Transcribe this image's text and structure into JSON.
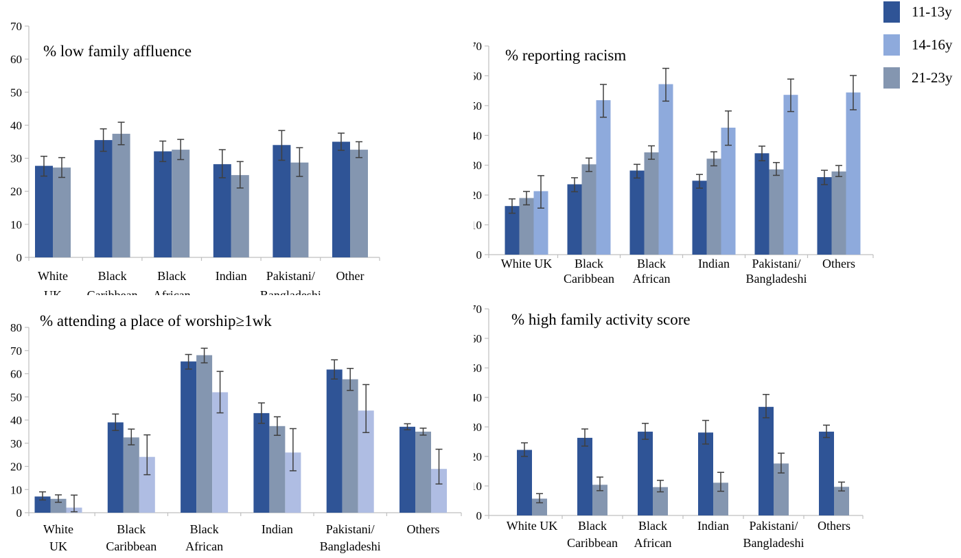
{
  "figure": {
    "background": "#ffffff"
  },
  "legend": {
    "position": "top-right",
    "items": [
      {
        "label": "11-13y",
        "color": "#2F5496"
      },
      {
        "label": "14-16y",
        "color": "#8EAADC"
      },
      {
        "label": "21-23y",
        "color": "#8496B0"
      }
    ]
  },
  "colors": {
    "axis": "#BFBFBF",
    "error_bar": "#3F3F3F",
    "text": "#000000"
  },
  "chart_data": [
    {
      "id": "low-family-affluence",
      "type": "bar",
      "title": "%  low family affluence",
      "xlabel": "",
      "ylabel": "",
      "ylim": [
        0,
        70
      ],
      "ytick_step": 10,
      "grid": false,
      "error_bars": true,
      "categories": [
        "White\nUK",
        "Black\nCaribbean",
        "Black\nAfrican",
        "Indian",
        "Pakistani/\nBangladeshi",
        "Other"
      ],
      "series": [
        {
          "name": "11-13y",
          "color": "#2F5496",
          "values": [
            27.7,
            35.5,
            32.1,
            28.2,
            34.0,
            35.0
          ],
          "ci_low": [
            24.6,
            32.1,
            29.0,
            24.1,
            29.4,
            32.4
          ],
          "ci_high": [
            30.6,
            38.9,
            35.2,
            32.6,
            38.4,
            37.6
          ]
        },
        {
          "name": "21-23y",
          "color": "#8496B0",
          "values": [
            27.2,
            37.4,
            32.6,
            24.9,
            28.7,
            32.6
          ],
          "ci_low": [
            24.2,
            34.1,
            29.6,
            21.0,
            24.5,
            30.2
          ],
          "ci_high": [
            30.2,
            40.9,
            35.7,
            29.0,
            33.2,
            35.0
          ]
        }
      ]
    },
    {
      "id": "reporting-racism",
      "type": "bar",
      "title": "% reporting racism",
      "xlabel": "",
      "ylabel": "",
      "ylim": [
        0,
        70
      ],
      "ytick_step": 10,
      "grid": false,
      "error_bars": true,
      "categories": [
        "White UK",
        "Black\nCaribbean",
        "Black\nAfrican",
        "Indian",
        "Pakistani/\nBangladeshi",
        "Others"
      ],
      "series": [
        {
          "name": "11-13y",
          "color": "#2F5496",
          "values": [
            16.3,
            23.6,
            28.2,
            24.8,
            34.0,
            26.0
          ],
          "ci_low": [
            13.9,
            21.1,
            25.7,
            22.3,
            31.5,
            23.5
          ],
          "ci_high": [
            18.7,
            25.8,
            30.3,
            26.9,
            36.4,
            28.3
          ]
        },
        {
          "name": "21-23y",
          "color": "#8496B0",
          "values": [
            19.0,
            30.3,
            34.3,
            32.2,
            28.6,
            27.9
          ],
          "ci_low": [
            16.7,
            27.9,
            32.0,
            29.8,
            26.6,
            26.2
          ],
          "ci_high": [
            21.2,
            32.4,
            36.5,
            34.5,
            30.9,
            29.9
          ]
        },
        {
          "name": "14-16y",
          "color": "#8EAADC",
          "values": [
            21.3,
            51.8,
            57.2,
            42.6,
            53.6,
            54.4
          ],
          "ci_low": [
            15.6,
            46.1,
            51.5,
            36.7,
            48.0,
            48.6
          ],
          "ci_high": [
            26.5,
            57.1,
            62.5,
            48.2,
            58.9,
            60.1
          ]
        }
      ]
    },
    {
      "id": "attending-worship",
      "type": "bar",
      "title": "% attending a place of worship≥1wk",
      "xlabel": "",
      "ylabel": "",
      "ylim": [
        0,
        80
      ],
      "ytick_step": 10,
      "grid": false,
      "error_bars": true,
      "categories": [
        "White\nUK",
        "Black\nCaribbean",
        "Black\nAfrican",
        "Indian",
        "Pakistani/\nBangladeshi",
        "Others"
      ],
      "series": [
        {
          "name": "11-13y",
          "color": "#2F5496",
          "values": [
            7.0,
            39.0,
            65.3,
            43.0,
            61.8,
            37.1
          ],
          "ci_low": [
            5.5,
            35.5,
            62.0,
            38.6,
            57.7,
            35.8
          ],
          "ci_high": [
            9.0,
            42.6,
            68.3,
            47.4,
            66.0,
            38.4
          ]
        },
        {
          "name": "21-23y",
          "color": "#8496B0",
          "values": [
            6.0,
            32.5,
            68.0,
            37.4,
            57.6,
            35.0
          ],
          "ci_low": [
            4.5,
            29.3,
            64.7,
            33.4,
            52.8,
            33.5
          ],
          "ci_high": [
            7.7,
            36.1,
            71.0,
            41.4,
            62.3,
            36.5
          ]
        },
        {
          "name": "14-16y",
          "color": "#AFBDE3",
          "values": [
            2.2,
            24.1,
            52.0,
            26.0,
            44.1,
            18.9
          ],
          "ci_low": [
            0.4,
            16.4,
            43.1,
            18.1,
            34.6,
            12.4
          ],
          "ci_high": [
            7.6,
            33.6,
            61.0,
            36.3,
            55.3,
            27.4
          ]
        }
      ]
    },
    {
      "id": "high-family-activity",
      "type": "bar",
      "title": "% high family activity score",
      "xlabel": "",
      "ylabel": "",
      "ylim": [
        0,
        70
      ],
      "ytick_step": 10,
      "grid": false,
      "error_bars": true,
      "categories": [
        "White UK",
        "Black\nCaribbean",
        "Black\nAfrican",
        "Indian",
        "Pakistani/\nBangladeshi",
        "Others"
      ],
      "series": [
        {
          "name": "11-13y",
          "color": "#2F5496",
          "values": [
            22.2,
            26.3,
            28.4,
            28.1,
            36.8,
            28.4
          ],
          "ci_low": [
            20.0,
            23.5,
            25.8,
            24.2,
            33.1,
            26.4
          ],
          "ci_high": [
            24.6,
            29.3,
            31.2,
            32.2,
            41.0,
            30.6
          ]
        },
        {
          "name": "21-23y",
          "color": "#8496B0",
          "values": [
            5.7,
            10.4,
            9.6,
            11.1,
            17.6,
            9.7
          ],
          "ci_low": [
            4.3,
            8.4,
            8.0,
            8.2,
            14.4,
            8.3
          ],
          "ci_high": [
            7.4,
            13.0,
            11.9,
            14.6,
            21.1,
            11.3
          ]
        }
      ]
    }
  ]
}
